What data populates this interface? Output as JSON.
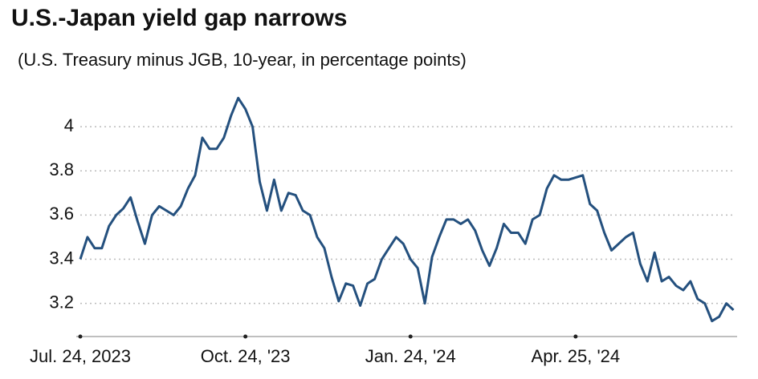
{
  "chart_data": {
    "type": "line",
    "title": "U.S.-Japan yield gap narrows",
    "subtitle": "(U.S. Treasury minus JGB, 10-year, in percentage points)",
    "x": [
      "2023-07-24",
      "2023-07-28",
      "2023-08-01",
      "2023-08-05",
      "2023-08-09",
      "2023-08-13",
      "2023-08-17",
      "2023-08-21",
      "2023-08-25",
      "2023-08-29",
      "2023-09-02",
      "2023-09-06",
      "2023-09-10",
      "2023-09-14",
      "2023-09-18",
      "2023-09-22",
      "2023-09-26",
      "2023-09-30",
      "2023-10-04",
      "2023-10-08",
      "2023-10-12",
      "2023-10-16",
      "2023-10-20",
      "2023-10-24",
      "2023-10-28",
      "2023-11-01",
      "2023-11-05",
      "2023-11-09",
      "2023-11-13",
      "2023-11-17",
      "2023-11-21",
      "2023-11-25",
      "2023-11-29",
      "2023-12-03",
      "2023-12-07",
      "2023-12-11",
      "2023-12-15",
      "2023-12-19",
      "2023-12-23",
      "2023-12-27",
      "2023-12-31",
      "2024-01-04",
      "2024-01-08",
      "2024-01-12",
      "2024-01-16",
      "2024-01-20",
      "2024-01-24",
      "2024-01-28",
      "2024-02-01",
      "2024-02-05",
      "2024-02-09",
      "2024-02-13",
      "2024-02-17",
      "2024-02-21",
      "2024-02-25",
      "2024-02-29",
      "2024-03-04",
      "2024-03-08",
      "2024-03-12",
      "2024-03-16",
      "2024-03-20",
      "2024-03-24",
      "2024-03-28",
      "2024-04-01",
      "2024-04-05",
      "2024-04-09",
      "2024-04-13",
      "2024-04-17",
      "2024-04-21",
      "2024-04-25",
      "2024-04-29",
      "2024-05-03",
      "2024-05-07",
      "2024-05-11",
      "2024-05-15",
      "2024-05-19",
      "2024-05-23",
      "2024-05-27",
      "2024-05-31",
      "2024-06-04",
      "2024-06-08",
      "2024-06-12",
      "2024-06-16",
      "2024-06-20",
      "2024-06-24",
      "2024-06-28",
      "2024-07-02",
      "2024-07-06",
      "2024-07-10",
      "2024-07-14",
      "2024-07-18",
      "2024-07-22"
    ],
    "series": [
      {
        "name": "U.S.-Japan yield gap",
        "color": "#24507e",
        "values": [
          3.4,
          3.5,
          3.45,
          3.45,
          3.55,
          3.6,
          3.63,
          3.68,
          3.57,
          3.47,
          3.6,
          3.64,
          3.62,
          3.6,
          3.64,
          3.72,
          3.78,
          3.95,
          3.9,
          3.9,
          3.95,
          4.05,
          4.13,
          4.08,
          4.0,
          3.75,
          3.62,
          3.76,
          3.62,
          3.7,
          3.69,
          3.62,
          3.6,
          3.5,
          3.45,
          3.32,
          3.21,
          3.29,
          3.28,
          3.19,
          3.29,
          3.31,
          3.4,
          3.45,
          3.5,
          3.47,
          3.4,
          3.36,
          3.2,
          3.41,
          3.5,
          3.58,
          3.58,
          3.56,
          3.58,
          3.53,
          3.44,
          3.37,
          3.45,
          3.56,
          3.52,
          3.52,
          3.47,
          3.58,
          3.6,
          3.72,
          3.78,
          3.76,
          3.76,
          3.77,
          3.78,
          3.65,
          3.62,
          3.52,
          3.44,
          3.47,
          3.5,
          3.52,
          3.38,
          3.3,
          3.43,
          3.3,
          3.32,
          3.28,
          3.26,
          3.3,
          3.22,
          3.2,
          3.12,
          3.14,
          3.2,
          3.17
        ]
      }
    ],
    "xlim": [
      "2023-07-24",
      "2024-07-24"
    ],
    "xticks": [
      {
        "value": "2023-07-24",
        "label": "Jul. 24, 2023"
      },
      {
        "value": "2023-10-24",
        "label": "Oct. 24, '23"
      },
      {
        "value": "2024-01-24",
        "label": "Jan. 24, '24"
      },
      {
        "value": "2024-04-25",
        "label": "Apr. 25, '24"
      }
    ],
    "ylim": [
      3.05,
      4.2
    ],
    "yticks": [
      3.2,
      3.4,
      3.6,
      3.8,
      4
    ],
    "grid": true
  }
}
